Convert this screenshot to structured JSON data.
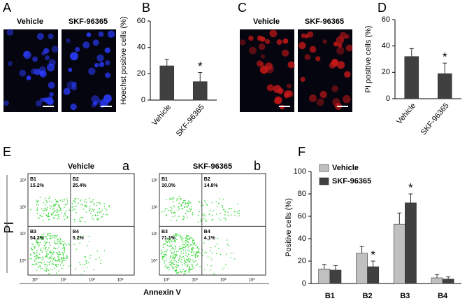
{
  "panels": [
    "A",
    "B",
    "C",
    "D",
    "E",
    "F"
  ],
  "micrographs": [
    {
      "labels": [
        "Vehicle",
        "SKF-96365"
      ],
      "color": "#2a3cff"
    },
    {
      "labels": [
        "Vehicle",
        "SKF-96365"
      ],
      "color": "#c81818"
    }
  ],
  "flow": {
    "x_label": "Annexin V",
    "y_label": "PI",
    "ticks": [
      "10⁰",
      "10¹",
      "10²",
      "10³"
    ],
    "plots": [
      {
        "title": "Vehicle",
        "letter": "a",
        "quadrants": [
          [
            "B1",
            "15.2%"
          ],
          [
            "B2",
            "25.4%"
          ],
          [
            "B3",
            "54.2%"
          ],
          [
            "B4",
            "5.2%"
          ]
        ]
      },
      {
        "title": "SKF-96365",
        "letter": "b",
        "quadrants": [
          [
            "B1",
            "10.0%"
          ],
          [
            "B2",
            "14.8%"
          ],
          [
            "B3",
            "71.1%"
          ],
          [
            "B4",
            "4.1%"
          ]
        ]
      }
    ]
  },
  "chart_data": [
    {
      "type": "bar",
      "y_label": "Hoechst positive cells (%)",
      "categories": [
        "Vehicle",
        "SKF-96365"
      ],
      "values": [
        26,
        14
      ],
      "errors": [
        5,
        7
      ],
      "markers": [
        null,
        "*"
      ],
      "color": "#404040",
      "ylim": [
        0,
        60
      ],
      "yticks": [
        0,
        20,
        40,
        60
      ]
    },
    {
      "type": "bar",
      "y_label": "PI positive cells (%)",
      "categories": [
        "Vehicle",
        "SKF-96365"
      ],
      "values": [
        32,
        19
      ],
      "errors": [
        6,
        8
      ],
      "markers": [
        null,
        "*"
      ],
      "color": "#404040",
      "ylim": [
        0,
        60
      ],
      "yticks": [
        0,
        20,
        40,
        60
      ]
    },
    {
      "type": "bar",
      "y_label": "Positive cells (%)",
      "categories": [
        "B1",
        "B2",
        "B3",
        "B4"
      ],
      "legend": "upper left",
      "ylim": [
        0,
        100
      ],
      "yticks": [
        0,
        20,
        40,
        60,
        80,
        100
      ],
      "series": [
        {
          "name": "Vehicle",
          "color": "#c0c0c0",
          "values": [
            13,
            27,
            53,
            5
          ],
          "errors": [
            4,
            6,
            10,
            3
          ],
          "markers": [
            null,
            null,
            null,
            null
          ]
        },
        {
          "name": "SKF-96365",
          "color": "#404040",
          "values": [
            12,
            15,
            72,
            4
          ],
          "errors": [
            4,
            5,
            8,
            2
          ],
          "markers": [
            null,
            "*",
            "*",
            null
          ]
        }
      ]
    }
  ]
}
